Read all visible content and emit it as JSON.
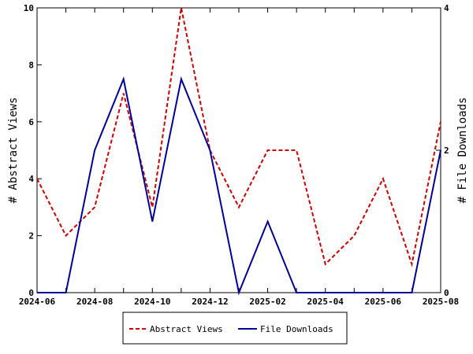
{
  "chart_data": {
    "type": "line",
    "x_labels": [
      "2024-06",
      "2024-07",
      "2024-08",
      "2024-09",
      "2024-10",
      "2024-11",
      "2024-12",
      "2025-01",
      "2025-02",
      "2025-03",
      "2025-04",
      "2025-05",
      "2025-06",
      "2025-07",
      "2025-08"
    ],
    "x_ticks": [
      "2024-06",
      "2024-08",
      "2024-10",
      "2024-12",
      "2025-02",
      "2025-04",
      "2025-06",
      "2025-08"
    ],
    "ylabel_left": "# Abstract Views",
    "ylabel_right": "# File Downloads",
    "ylim_left": [
      0,
      10
    ],
    "ylim_right": [
      0,
      4
    ],
    "yticks_left": [
      0,
      2,
      4,
      6,
      8,
      10
    ],
    "yticks_right": [
      0,
      2,
      4
    ],
    "grid": false,
    "legend_position": "bottom-center",
    "series": [
      {
        "name": "Abstract Views",
        "axis": "left",
        "color": "#cc0000",
        "dash": "dashed",
        "values": [
          4,
          2,
          3,
          7,
          3,
          10,
          5,
          3,
          5,
          5,
          1,
          2,
          4,
          1,
          6
        ]
      },
      {
        "name": "File Downloads",
        "axis": "right",
        "color": "#000099",
        "dash": "solid",
        "values": [
          0,
          0,
          2,
          3,
          1,
          3,
          2,
          0,
          1,
          0,
          0,
          0,
          0,
          0,
          2
        ]
      }
    ]
  }
}
